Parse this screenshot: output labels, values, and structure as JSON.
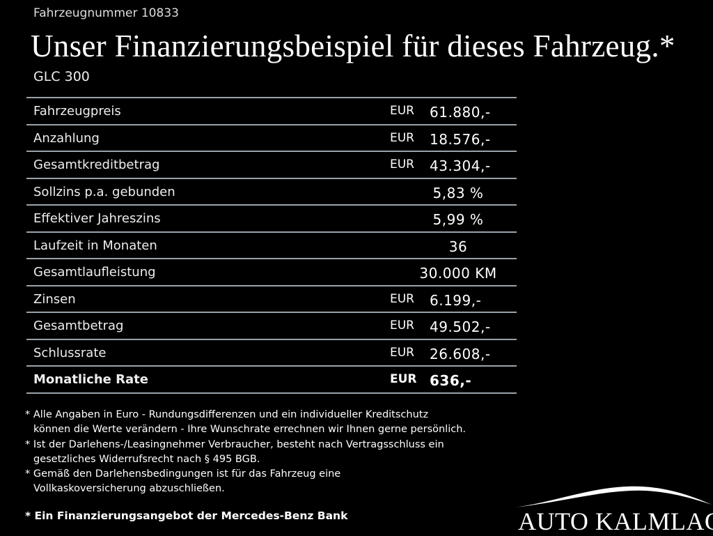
{
  "header": {
    "vehicle_number": "Fahrzeugnummer 10833",
    "title": "Unser Finanzierungsbeispiel für dieses Fahrzeug.*",
    "model": "GLC 300"
  },
  "table": {
    "rows": [
      {
        "label": "Fahrzeugpreis",
        "currency": "EUR",
        "value": "61.880,-"
      },
      {
        "label": "Anzahlung",
        "currency": "EUR",
        "value": "18.576,-"
      },
      {
        "label": "Gesamtkreditbetrag",
        "currency": "EUR",
        "value": "43.304,-"
      },
      {
        "label": "Sollzins p.a. gebunden",
        "value": "5,83 %"
      },
      {
        "label": "Effektiver Jahreszins",
        "value": "5,99 %"
      },
      {
        "label": "Laufzeit in Monaten",
        "value": "36"
      },
      {
        "label": "Gesamtlaufleistung",
        "value": "30.000 KM"
      },
      {
        "label": "Zinsen",
        "currency": "EUR",
        "value": "6.199,-"
      },
      {
        "label": "Gesamtbetrag",
        "currency": "EUR",
        "value": "49.502,-"
      },
      {
        "label": "Schlussrate",
        "currency": "EUR",
        "value": "26.608,-"
      },
      {
        "label": "Monatliche Rate",
        "currency": "EUR",
        "value": "636,-",
        "bold": true
      }
    ]
  },
  "footnotes": [
    "* Alle Angaben in Euro - Rundungsdifferenzen und ein individueller Kreditschutz",
    "können die Werte verändern - Ihre Wunschrate errechnen wir Ihnen gerne persönlich.",
    "* Ist der Darlehens-/Leasingnehmer Verbraucher, besteht nach Vertragsschluss ein",
    "gesetzliches Widerrufsrecht nach § 495 BGB.",
    "* Gemäß den Darlehensbedingungen ist für das Fahrzeug eine",
    "Vollkaskoversicherung abzuschließen."
  ],
  "bank_note": "* Ein Finanzierungsangebot der Mercedes-Benz Bank",
  "logo": "AUTO KALMLAGE"
}
